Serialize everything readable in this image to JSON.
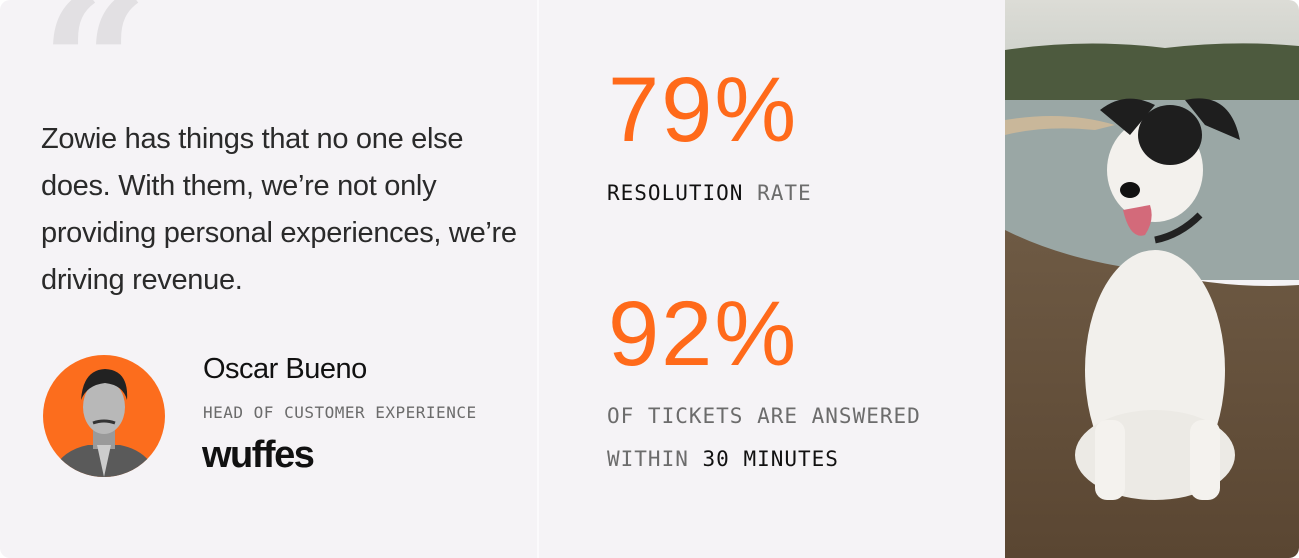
{
  "testimonial": {
    "quote_mark": "“",
    "quote": "Zowie has things that no one else does. With them, we’re not only providing personal experiences, we’re driving revenue.",
    "author_name": "Oscar Bueno",
    "author_role": "HEAD OF CUSTOMER EXPERIENCE",
    "company_logo": "wuffes"
  },
  "stats": [
    {
      "value": "79%",
      "label_dark": "RESOLUTION",
      "label_light": "RATE"
    },
    {
      "value": "92%",
      "label_line1": "OF TICKETS ARE ANSWERED",
      "label_light": "WITHIN",
      "label_dark": "30 MINUTES"
    }
  ],
  "colors": {
    "accent": "#ff6a1a",
    "background": "#f5f3f6"
  }
}
